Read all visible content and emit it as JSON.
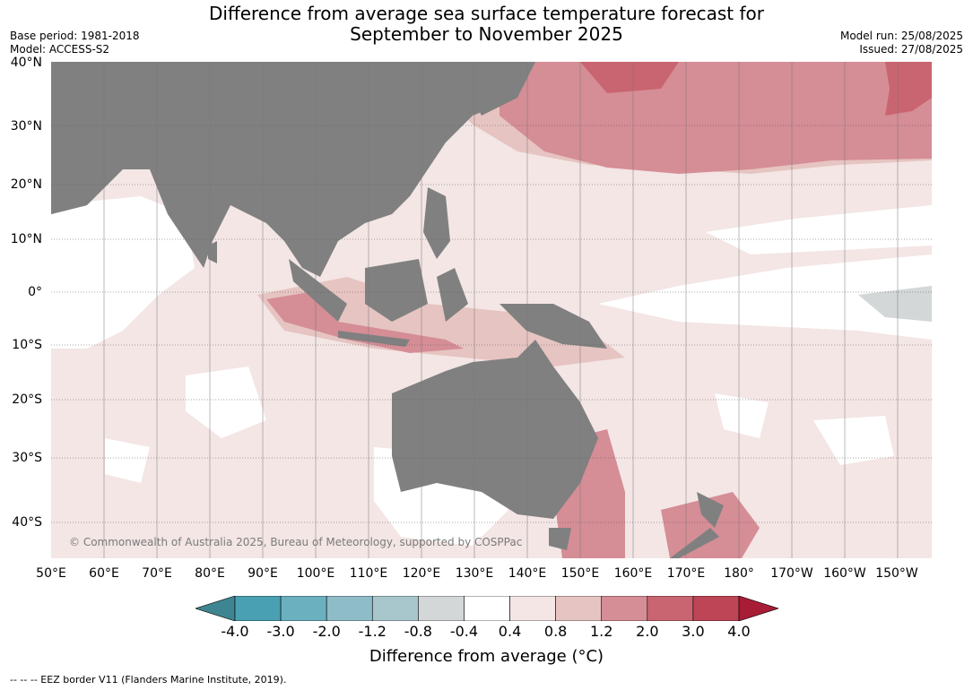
{
  "title_line1": "Difference from average sea surface temperature forecast for",
  "title_line2": "September to November 2025",
  "base_period": "Base period: 1981-2018",
  "model": "Model: ACCESS-S2",
  "model_run": "Model run: 25/08/2025",
  "issued": "Issued: 27/08/2025",
  "lat_ticks": [
    "40°N",
    "30°N",
    "20°N",
    "10°N",
    "0°",
    "10°S",
    "20°S",
    "30°S",
    "40°S"
  ],
  "lon_ticks": [
    "50°E",
    "60°E",
    "70°E",
    "80°E",
    "90°E",
    "100°E",
    "110°E",
    "120°E",
    "130°E",
    "140°E",
    "150°E",
    "160°E",
    "170°E",
    "180°",
    "170°W",
    "160°W",
    "150°W"
  ],
  "credit": "© Commonwealth of Australia 2025, Bureau of Meteorology, supported by COSPPac",
  "colorbar": {
    "labels": [
      "-4.0",
      "-3.0",
      "-2.0",
      "-1.2",
      "-0.8",
      "-0.4",
      "0.4",
      "0.8",
      "1.2",
      "2.0",
      "3.0",
      "4.0"
    ],
    "colors": [
      "#3e8591",
      "#4aa0b3",
      "#6bb0bf",
      "#8ebcc8",
      "#a8c7cc",
      "#d4d7d8",
      "#ffffff",
      "#f3e6e5",
      "#e6c4c1",
      "#d58d96",
      "#c96570",
      "#bd4556",
      "#a81c35"
    ],
    "title": "Difference from average (°C)"
  },
  "colors": {
    "land": "#808080",
    "land_fill_below": "#d4d7d8"
  },
  "footnote": "--  --  -- EEZ border V11 (Flanders Marine Institute, 2019)."
}
